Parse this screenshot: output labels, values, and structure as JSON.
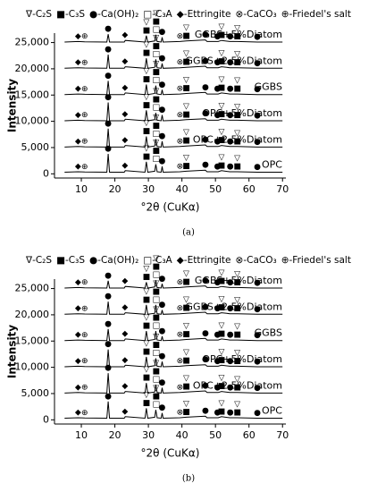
{
  "chart_data": [
    {
      "type": "line",
      "legend": [
        {
          "symbol": "∇",
          "label": "-C₂S"
        },
        {
          "symbol": "■",
          "label": "-C₃S"
        },
        {
          "symbol": "●",
          "label": "-Ca(OH)₂"
        },
        {
          "symbol": "□",
          "label": "-C₃A"
        },
        {
          "symbol": "◆",
          "label": "-Ettringite"
        },
        {
          "symbol": "⊗",
          "label": "-CaCO₃"
        },
        {
          "symbol": "⊕",
          "label": "-Friedel's salt"
        }
      ],
      "xlabel": "°2θ (CuKα)",
      "ylabel": "Intensity",
      "caption": "(a)",
      "xlim": [
        2,
        71
      ],
      "xticks": [
        10,
        20,
        30,
        40,
        50,
        60,
        70
      ],
      "ylim": [
        -800,
        26800
      ],
      "yticks": [
        0,
        {
          "value": 5000,
          "label": "5,000"
        },
        {
          "value": 10000,
          "label": "10,000"
        },
        {
          "value": 15000,
          "label": "15,000"
        },
        {
          "value": 20000,
          "label": "20,000"
        },
        {
          "value": 25000,
          "label": "25,000"
        }
      ],
      "x": [
        5,
        9,
        11,
        17.6,
        18.0,
        18.4,
        22.8,
        23.1,
        29.0,
        29.4,
        29.8,
        31.9,
        32.2,
        32.6,
        33.8,
        34.1,
        34.4,
        39.4,
        41.3,
        47.0,
        47.5,
        50.8,
        51.8,
        54.3,
        56.5,
        62.5,
        70
      ],
      "series": [
        {
          "name": "OPC",
          "color": "#000000",
          "values": [
            300,
            400,
            350,
            300,
            3800,
            300,
            300,
            600,
            300,
            2300,
            300,
            500,
            1800,
            400,
            300,
            1400,
            300,
            400,
            500,
            700,
            400,
            400,
            600,
            400,
            400,
            300,
            300
          ]
        },
        {
          "name": "OPC+2.5%Diatom",
          "color": "#000000",
          "values": [
            5100,
            5200,
            5150,
            5100,
            8600,
            5100,
            5100,
            5400,
            5100,
            7100,
            5100,
            5300,
            6600,
            5200,
            5100,
            6200,
            5100,
            5200,
            5300,
            5500,
            5200,
            5200,
            5400,
            5200,
            5200,
            5100,
            5100
          ]
        },
        {
          "name": "OPC+5%Diatom",
          "color": "#000000",
          "values": [
            10100,
            10200,
            10150,
            10100,
            13600,
            10100,
            10100,
            10400,
            10100,
            12100,
            10100,
            10300,
            11600,
            10200,
            10100,
            11200,
            10100,
            10200,
            10300,
            10500,
            10200,
            10200,
            10400,
            10200,
            10200,
            10100,
            10100
          ]
        },
        {
          "name": "GGBS",
          "color": "#000000",
          "values": [
            15100,
            15200,
            15150,
            15100,
            17700,
            15100,
            15100,
            15400,
            15100,
            17000,
            15100,
            15300,
            16800,
            15200,
            15100,
            16000,
            15100,
            15200,
            15300,
            15500,
            15200,
            15200,
            15400,
            15200,
            15200,
            15100,
            15100
          ]
        },
        {
          "name": "GGBS+2.5%Diatom",
          "color": "#000000",
          "values": [
            20100,
            20200,
            20150,
            20100,
            22700,
            20100,
            20100,
            20400,
            20100,
            22000,
            20100,
            20300,
            21800,
            20200,
            20100,
            21000,
            20100,
            20200,
            20300,
            20500,
            20200,
            20200,
            20400,
            20200,
            20200,
            20100,
            20100
          ]
        },
        {
          "name": "GGBS+5%Diatom",
          "color": "#000000",
          "values": [
            25100,
            25200,
            25150,
            25100,
            26600,
            25100,
            25100,
            25400,
            25100,
            26300,
            25100,
            25300,
            26500,
            25200,
            25100,
            26000,
            25100,
            25200,
            25300,
            25500,
            25200,
            25200,
            25400,
            25200,
            25200,
            25100,
            25100
          ]
        }
      ],
      "markers": [
        {
          "x": 9,
          "symbol": "◆"
        },
        {
          "x": 11,
          "symbol": "⊕"
        },
        {
          "x": 18,
          "symbol": "●"
        },
        {
          "x": 23,
          "symbol": "◆"
        },
        {
          "x": 29.4,
          "symbol": "■"
        },
        {
          "x": 29.4,
          "symbol": "▽"
        },
        {
          "x": 32.3,
          "symbol": "□"
        },
        {
          "x": 32.3,
          "symbol": "■"
        },
        {
          "x": 32.3,
          "symbol": "▽"
        },
        {
          "x": 34.1,
          "symbol": "●"
        },
        {
          "x": 39.4,
          "symbol": "⊗"
        },
        {
          "x": 41.3,
          "symbol": "■"
        },
        {
          "x": 41.3,
          "symbol": "▽"
        },
        {
          "x": 47,
          "symbol": "●"
        },
        {
          "x": 50.6,
          "symbol": "●"
        },
        {
          "x": 51.8,
          "symbol": "■"
        },
        {
          "x": 51.8,
          "symbol": "▽"
        },
        {
          "x": 54.4,
          "symbol": "●"
        },
        {
          "x": 56.5,
          "symbol": "■"
        },
        {
          "x": 56.5,
          "symbol": "▽"
        },
        {
          "x": 62.5,
          "symbol": "●"
        }
      ]
    },
    {
      "type": "line",
      "legend": [
        {
          "symbol": "∇",
          "label": "-C₂S"
        },
        {
          "symbol": "■",
          "label": "-C₃S"
        },
        {
          "symbol": "●",
          "label": "-Ca(OH)₂"
        },
        {
          "symbol": "□",
          "label": "-C₃A"
        },
        {
          "symbol": "◆",
          "label": "-Ettringite"
        },
        {
          "symbol": "⊗",
          "label": "-CaCO₃"
        },
        {
          "symbol": "⊕",
          "label": "-Friedel's salt"
        }
      ],
      "xlabel": "°2θ (CuKα)",
      "ylabel": "Intensity",
      "caption": "(b)",
      "xlim": [
        2,
        71
      ],
      "xticks": [
        10,
        20,
        30,
        40,
        50,
        60,
        70
      ],
      "ylim": [
        -800,
        26800
      ],
      "yticks": [
        0,
        {
          "value": 5000,
          "label": "5,000"
        },
        {
          "value": 10000,
          "label": "10,000"
        },
        {
          "value": 15000,
          "label": "15,000"
        },
        {
          "value": 20000,
          "label": "20,000"
        },
        {
          "value": 25000,
          "label": "25,000"
        }
      ],
      "x": [
        5,
        9,
        11,
        17.6,
        18.0,
        18.4,
        22.8,
        23.1,
        29.0,
        29.4,
        29.8,
        31.9,
        32.2,
        32.6,
        33.8,
        34.1,
        34.4,
        39.4,
        41.3,
        47.0,
        47.5,
        50.8,
        51.8,
        54.3,
        56.5,
        62.5,
        70
      ],
      "series": [
        {
          "name": "OPC",
          "color": "#000000",
          "values": [
            300,
            400,
            350,
            300,
            3500,
            300,
            300,
            600,
            300,
            2200,
            300,
            500,
            1900,
            400,
            300,
            1300,
            300,
            400,
            500,
            700,
            400,
            400,
            600,
            400,
            400,
            300,
            300
          ]
        },
        {
          "name": "OPC+2.5%Diatom",
          "color": "#000000",
          "values": [
            5100,
            5200,
            5150,
            5100,
            8900,
            5100,
            5100,
            5400,
            5100,
            7000,
            5100,
            5300,
            6700,
            5200,
            5100,
            6100,
            5100,
            5200,
            5300,
            5500,
            5200,
            5200,
            5400,
            5200,
            5200,
            5100,
            5100
          ]
        },
        {
          "name": "OPC+5%Diatom",
          "color": "#000000",
          "values": [
            10100,
            10200,
            10150,
            10100,
            13400,
            10100,
            10100,
            10400,
            10100,
            12000,
            10100,
            10300,
            11700,
            10200,
            10100,
            11100,
            10100,
            10200,
            10300,
            10500,
            10200,
            10200,
            10400,
            10200,
            10200,
            10100,
            10100
          ]
        },
        {
          "name": "GGBS",
          "color": "#000000",
          "values": [
            15100,
            15200,
            15150,
            15100,
            17300,
            15100,
            15100,
            15400,
            15100,
            16900,
            15100,
            15300,
            16900,
            15200,
            15100,
            15900,
            15100,
            15200,
            15300,
            15500,
            15200,
            15200,
            15400,
            15200,
            15200,
            15100,
            15100
          ]
        },
        {
          "name": "GGBS+2.5%Diatom",
          "color": "#000000",
          "values": [
            20100,
            20200,
            20150,
            20100,
            22500,
            20100,
            20100,
            20400,
            20100,
            21900,
            20100,
            20300,
            21900,
            20200,
            20100,
            20900,
            20100,
            20200,
            20300,
            20500,
            20200,
            20200,
            20400,
            20200,
            20200,
            20100,
            20100
          ]
        },
        {
          "name": "GGBS+5%Diatom",
          "color": "#000000",
          "values": [
            25100,
            25200,
            25150,
            25100,
            26500,
            25100,
            25100,
            25400,
            25100,
            26200,
            25100,
            25300,
            26600,
            25200,
            25100,
            25900,
            25100,
            25200,
            25300,
            25500,
            25200,
            25200,
            25400,
            25200,
            25200,
            25100,
            25100
          ]
        }
      ],
      "markers": [
        {
          "x": 9,
          "symbol": "◆"
        },
        {
          "x": 11,
          "symbol": "⊕"
        },
        {
          "x": 18,
          "symbol": "●"
        },
        {
          "x": 23,
          "symbol": "◆"
        },
        {
          "x": 29.4,
          "symbol": "■"
        },
        {
          "x": 29.4,
          "symbol": "▽"
        },
        {
          "x": 32.3,
          "symbol": "□"
        },
        {
          "x": 32.3,
          "symbol": "■"
        },
        {
          "x": 32.3,
          "symbol": "▽"
        },
        {
          "x": 34.1,
          "symbol": "●"
        },
        {
          "x": 39.4,
          "symbol": "⊗"
        },
        {
          "x": 41.3,
          "symbol": "■"
        },
        {
          "x": 41.3,
          "symbol": "▽"
        },
        {
          "x": 47,
          "symbol": "●"
        },
        {
          "x": 50.6,
          "symbol": "●"
        },
        {
          "x": 51.8,
          "symbol": "■"
        },
        {
          "x": 51.8,
          "symbol": "▽"
        },
        {
          "x": 54.4,
          "symbol": "●"
        },
        {
          "x": 56.5,
          "symbol": "■"
        },
        {
          "x": 56.5,
          "symbol": "▽"
        },
        {
          "x": 62.5,
          "symbol": "●"
        }
      ]
    }
  ]
}
